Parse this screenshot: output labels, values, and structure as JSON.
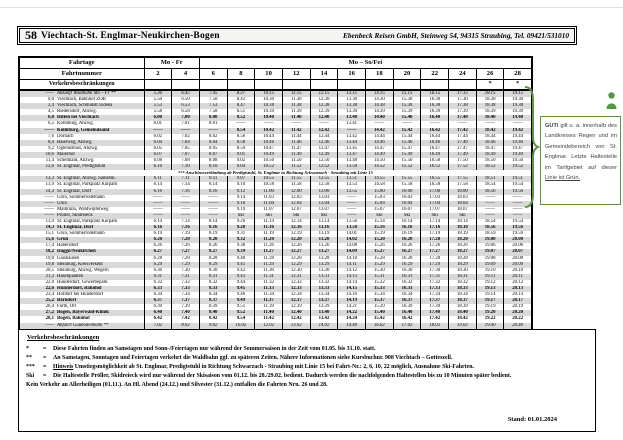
{
  "header": {
    "line": "58",
    "route": "Viechtach-St. Englmar-Neukirchen-Bogen",
    "operator": "Ebenbeck Reisen GmbH, Steinweg 54, 94315 Straubing, Tel. 09421/531010"
  },
  "table": {
    "labels": {
      "fahrtage": "Fahrtage",
      "fahrtnummer": "Fahrtnummer",
      "verkehr": "Verkehrsbeschränkungen"
    },
    "groups": {
      "mo_fr": "Mo - Fr",
      "mo_so": "Mo – So/Fei"
    },
    "trip_numbers": [
      "2",
      "4",
      "6",
      "8",
      "10",
      "12",
      "14",
      "16",
      "18",
      "20",
      "22",
      "24",
      "26",
      "28"
    ],
    "restrictions": [
      "",
      "",
      "",
      "",
      "",
      "",
      "",
      "",
      "",
      "",
      "",
      "",
      "*",
      "*"
    ],
    "rows": [
      [
        "——",
        "Ankunft Waldbahn Mo – Fr **",
        "i",
        [
          "5.36",
          "6.45",
          "7.45",
          "8.37",
          "10.15",
          "11.15",
          "12.15",
          "13.15",
          "14.15",
          "15.15",
          "16.15",
          "17.15",
          "18.15",
          "19.15"
        ]
      ],
      [
        "0,0",
        "Viechtach, Bahnhof ZOB",
        "n",
        [
          "5.50",
          "6.50",
          "7.50",
          "8.42",
          "10.30",
          "11.30",
          "12.30",
          "13.30",
          "14.30",
          "15.30",
          "16.30",
          "17.30",
          "18.30",
          "19.30"
        ]
      ],
      [
        "2,4",
        "Viechtach, Schmidstr./Edeka",
        "n",
        [
          "5.53",
          "6.53",
          "7.53",
          "8.47",
          "10.38",
          "11.38",
          "12.38",
          "13.38",
          "14.38",
          "15.38",
          "16.38",
          "17.38",
          "18.38",
          "19.38"
        ]
      ],
      [
        "4,5",
        "Riedersdorf, Abzwg.",
        "n",
        [
          "5.58",
          "6.58",
          "7.58",
          "8.51",
          "10.39",
          "11.39",
          "12.39",
          "13.39",
          "14.39",
          "15.39",
          "16.39",
          "17.39",
          "18.39",
          "19.39"
        ]
      ],
      [
        "6,0",
        "Hitten bei Viechtach",
        "b",
        [
          "6.00",
          "7.00",
          "8.00",
          "8.52",
          "10.40",
          "11.40",
          "12.40",
          "13.40",
          "14.40",
          "15.40",
          "16.40",
          "17.40",
          "18.40",
          "19.40"
        ]
      ],
      [
        "6,5",
        "Kollnburg, Abzwg.",
        "n",
        [
          "6.01",
          "7.01",
          "8.01",
          "——",
          "——",
          "——",
          "——",
          "13.41",
          "——",
          "——",
          "——",
          "——",
          "——",
          "——"
        ]
      ],
      [
        "——",
        "Kollnburg, Gemeindeamt",
        "b",
        [
          "——",
          "——",
          "——",
          "8.54",
          "10.42",
          "11.42",
          "12.42",
          "——",
          "14.42",
          "15.42",
          "16.42",
          "17.42",
          "18.42",
          "19.42"
        ]
      ],
      [
        "7,6",
        "Dornach",
        "n",
        [
          "6.02",
          "7.02",
          "8.02",
          "8.56",
          "10.44",
          "11.44",
          "12.44",
          "13.42",
          "14.44",
          "15.44",
          "16.44",
          "17.44",
          "18.44",
          "19.44"
        ]
      ],
      [
        "8,4",
        "Baierweg, Abzwg.",
        "n",
        [
          "6.04",
          "7.04",
          "8.04",
          "8.58",
          "10.46",
          "11.46",
          "12.46",
          "13.44",
          "14.46",
          "15.46",
          "16.46",
          "17.46",
          "18.46",
          "19.46"
        ]
      ],
      [
        "9,2",
        "Ogleinsmais, Abzwg.",
        "n",
        [
          "6.05",
          "7.05",
          "8.05",
          "8.59",
          "10.47",
          "11.47",
          "12.47",
          "13.45",
          "14.47",
          "15.47",
          "16.47",
          "17.47",
          "18.47",
          "19.47"
        ]
      ],
      [
        "10,6",
        "Maierhof",
        "n",
        [
          "6.07",
          "7.07",
          "8.07",
          "9.01",
          "10.49",
          "11.49",
          "12.49",
          "13.47",
          "14.49",
          "15.49",
          "16.49",
          "17.49",
          "18.49",
          "19.49"
        ]
      ],
      [
        "11,4",
        "Schelmaid, Abzwg.",
        "n",
        [
          "6.08",
          "7.08",
          "8.08",
          "9.02",
          "10.50",
          "11.50",
          "12.50",
          "13.48",
          "14.50",
          "15.50",
          "16.50",
          "17.50",
          "18.50",
          "19.50"
        ]
      ],
      [
        "12,6",
        "St. Englmar, Predigtstuhl",
        "n",
        [
          "6.10",
          "7.10",
          "8.10",
          "9.04",
          "10.52",
          "11.52",
          "12.52",
          "13.50",
          "14.52",
          "15.52",
          "16.52",
          "17.52",
          "18.52",
          "19.52"
        ]
      ],
      [
        "",
        "*** Anschlussverbindung ab Predigtstuhl, St. Englmar in Richtung Schwarzach - Straubing mit Linie 15",
        "sep",
        []
      ],
      [
        "13,3",
        "St. Englmar, Abzwg. Samersk.",
        "n",
        [
          "6.11",
          "7.11",
          "8.11",
          "9.07",
          "10.55",
          "11.55",
          "12.55",
          "13.51",
          "14.55",
          "15.55",
          "16.55",
          "17.55",
          "18.51",
          "19.51"
        ]
      ],
      [
        "13,9",
        "St. Englmar, Parkplatz Kurpark",
        "n",
        [
          "6.14",
          "7.14",
          "8.14",
          "9.10",
          "10.58",
          "11.58",
          "12.58",
          "13.53",
          "14.58",
          "15.58",
          "16.58",
          "17.58",
          "18.54",
          "19.54"
        ]
      ],
      [
        "14,3",
        "St. Englmar, Dorf",
        "n",
        [
          "6.16",
          "7.16",
          "8.16",
          "9.12",
          "11.00",
          "12.00",
          "13.00",
          "13.55",
          "15.00",
          "16.00",
          "17.00",
          "18.00",
          "18.56",
          "19.56"
        ]
      ],
      [
        "——",
        "Grün, Sommerrodelbahn",
        "n",
        [
          "——",
          "——",
          "——",
          "9.14",
          "11.03",
          "12.03",
          "13.03",
          "——",
          "15.03",
          "16.03",
          "17.03",
          "18.03",
          "——",
          "——"
        ]
      ],
      [
        "——",
        "Grün",
        "n",
        [
          "——",
          "——",
          "——",
          "9.16",
          "11.04",
          "12.04",
          "13.04",
          "——",
          "15.04",
          "16.04",
          "17.04",
          "18.04",
          "——",
          "——"
        ]
      ],
      [
        "——",
        "Maibrunn, Waldwipfelweg",
        "n",
        [
          "——",
          "——",
          "——",
          "9.19",
          "11.07",
          "12.07",
          "13.07",
          "——",
          "15.07",
          "16.07",
          "17.07",
          "18.07",
          "——",
          "——"
        ]
      ],
      [
        "——",
        "Pröller, Skidreieck",
        "n",
        [
          "——",
          "——",
          "——",
          "Ski",
          "Ski",
          "Ski",
          "Ski",
          "——",
          "Ski",
          "Ski",
          "Ski",
          "Ski",
          "——",
          "——"
        ]
      ],
      [
        "13,9",
        "St. Englmar, Parkplatz Kurpark",
        "n",
        [
          "6.14",
          "7.14",
          "8.14",
          "9.26",
          "11.14",
          "12.14",
          "13.14",
          "13.56",
          "15.14",
          "16.14",
          "17.14",
          "18.14",
          "18.54",
          "19.54"
        ]
      ],
      [
        "14,3",
        "St. Englmar, Dorf",
        "b",
        [
          "6.16",
          "7.16",
          "8.16",
          "9.28",
          "11.16",
          "12.16",
          "13.16",
          "13.58",
          "15.16",
          "16.16",
          "17.16",
          "18.16",
          "18.56",
          "19.56"
        ]
      ],
      [
        "15,1",
        "Grün, Sommerrodelbahn",
        "n",
        [
          "6.19",
          "7.19",
          "8.19",
          "9.31",
          "11.19",
          "12.19",
          "13.19",
          "14.01",
          "15.19",
          "16.19",
          "17.19",
          "18.19",
          "18.59",
          "19.59"
        ]
      ],
      [
        "15,6",
        "Grün",
        "b",
        [
          "6.20",
          "7.20",
          "8.20",
          "9.32",
          "11.20",
          "12.20",
          "13.20",
          "14.02",
          "15.20",
          "16.20",
          "17.20",
          "18.20",
          "19.00",
          "20.00"
        ]
      ],
      [
        "17,4",
        "Habersdorf",
        "n",
        [
          "6.26",
          "7.26",
          "8.26",
          "9.38",
          "11.26",
          "12.26",
          "13.26",
          "14.08",
          "15.26",
          "16.26",
          "17.26",
          "18.26",
          "19.06",
          "20.06"
        ]
      ],
      [
        "18,2",
        "Haggn/Neukirchen",
        "b",
        [
          "6.27",
          "7.27",
          "8.27",
          "9.39",
          "11.27",
          "12.27",
          "13.27",
          "14.09",
          "15.27",
          "16.27",
          "17.27",
          "18.27",
          "19.07",
          "20.07"
        ]
      ],
      [
        "19,0",
        "Gaishausen",
        "n",
        [
          "6.28",
          "7.28",
          "8.28",
          "9.40",
          "11.28",
          "12.28",
          "13.28",
          "14.10",
          "15.28",
          "16.28",
          "17.28",
          "18.28",
          "19.08",
          "20.08"
        ]
      ],
      [
        "19,8",
        "Steinburg, Kreisverkehr",
        "n",
        [
          "6.29",
          "7.29",
          "8.29",
          "9.41",
          "11.29",
          "12.29",
          "13.29",
          "14.11",
          "15.29",
          "16.29",
          "17.29",
          "18.29",
          "19.09",
          "20.09"
        ]
      ],
      [
        "20,5",
        "Steinburg, Abzwg. Wegern",
        "n",
        [
          "6.30",
          "7.30",
          "8.30",
          "9.42",
          "11.30",
          "12.30",
          "13.30",
          "14.12",
          "15.30",
          "16.30",
          "17.30",
          "18.30",
          "19.10",
          "20.10"
        ]
      ],
      [
        "21,3",
        "Haselquanten",
        "n",
        [
          "6.31",
          "7.31",
          "8.31",
          "9.43",
          "11.31",
          "12.31",
          "13.31",
          "14.13",
          "15.31",
          "16.31",
          "17.31",
          "18.31",
          "19.11",
          "20.11"
        ]
      ],
      [
        "22,0",
        "Hunderdorf, Gewerbepark",
        "n",
        [
          "6.32",
          "7.32",
          "8.32",
          "9.44",
          "11.32",
          "12.32",
          "13.32",
          "14.14",
          "15.32",
          "16.32",
          "17.32",
          "18.32",
          "19.12",
          "20.12"
        ]
      ],
      [
        "22,6",
        "Hunderdorf, Bahnhof",
        "b",
        [
          "6.33",
          "7.33",
          "8.33",
          "9.45",
          "11.33",
          "12.33",
          "13.33",
          "14.15",
          "15.33",
          "16.33",
          "17.33",
          "18.33",
          "19.13",
          "20.13"
        ]
      ],
      [
        "23,4",
        "Hofdorf bei Hunderdorf",
        "n",
        [
          "6.34",
          "7.34",
          "8.34",
          "9.46",
          "11.34",
          "12.34",
          "13.34",
          "14.16",
          "15.34",
          "16.34",
          "17.34",
          "18.34",
          "19.14",
          "20.14"
        ]
      ],
      [
        "25,2",
        "Bärndorf",
        "b",
        [
          "6.37",
          "7.37",
          "8.37",
          "9.49",
          "11.37",
          "12.37",
          "13.37",
          "14.19",
          "15.37",
          "16.37",
          "17.37",
          "18.37",
          "19.17",
          "20.17"
        ]
      ],
      [
        "26,4",
        "Furth, Ort",
        "n",
        [
          "6.39",
          "7.39",
          "8.39",
          "9.51",
          "11.39",
          "12.39",
          "13.39",
          "14.21",
          "15.39",
          "16.39",
          "17.39",
          "18.39",
          "19.19",
          "20.19"
        ]
      ],
      [
        "27,2",
        "Bogen, Bayerwald-Klinik",
        "b",
        [
          "6.40",
          "7.40",
          "8.40",
          "9.52",
          "11.40",
          "12.40",
          "13.40",
          "14.22",
          "15.40",
          "16.40",
          "17.40",
          "18.40",
          "19.20",
          "20.20"
        ]
      ],
      [
        "28,1",
        "Bogen, Bahnhof",
        "b",
        [
          "6.42",
          "7.42",
          "8.42",
          "9.54",
          "11.42",
          "12.42",
          "13.42",
          "14.24",
          "15.42",
          "16.42",
          "17.42",
          "18.42",
          "19.22",
          "20.22"
        ]
      ],
      [
        "——",
        "Abfahrt Gäubodenbahn **",
        "i",
        [
          "7.02",
          "8.02",
          "9.02",
          "10.02",
          "12.02",
          "13.02",
          "14.02",
          "14.40",
          "16.02",
          "17.02",
          "18.02",
          "19.02",
          "19.40",
          "20.40"
        ]
      ]
    ]
  },
  "sidebar": {
    "bold": "GUTi",
    "body": " gilt u. a. innerhalb des Landkreises Regen und im Gemeindebereich von St. Englmar. Letzte Haltestelle im Tarifgebiet auf dieser ",
    "tail": "Linie ist Grün.",
    "accent_color": "#5f9440"
  },
  "footer": {
    "title": "Verkehrsbeschränkungen",
    "footnotes": [
      {
        "sym": "*",
        "eq": "=",
        "u": "",
        "text": "Diese Fahrten finden an Samstagen und Sonn-/Feiertagen nur während der Sommersaison in der Zeit vom 01.05. bis 31.10. statt."
      },
      {
        "sym": "**",
        "eq": "=",
        "u": "",
        "text": "An Samstagen, Sonntagen und Feiertagen verkehrt die Waldbahn ggf. zu späteren Zeiten. Nähere Informationen siehe Kursbuchnr. 908 Viechtach – Gotteszell."
      },
      {
        "sym": "***",
        "eq": "=",
        "u": "Hinweis",
        "text": " Umstiegsmöglichkeit ab St. Englmar, Predigtstuhl in Richtung Schwarzach - Straubing mit Linie 15 bei Fahrt-Nr.: 2, 6, 10, 22 möglich, Ausnahme Ski-Fahrten."
      },
      {
        "sym": "Ski",
        "eq": "=",
        "u": "",
        "text": "Die Haltestelle Pröller, Skidreieck wird nur während der Skisaison vom 01.12. bis 28./29.02. bedient. Dadurch werden die nachfolgenden Haltestellen bis zu 10 Minuten später bedient."
      }
    ],
    "note": "Kein Verkehr an Allerheiligen (01.11.). An Hl. Abend (24.12.) und Silvester (31.12.) entfallen die Fahrten Nrn. 26 und 28.",
    "stand": "Stand: 01.01.2024"
  }
}
